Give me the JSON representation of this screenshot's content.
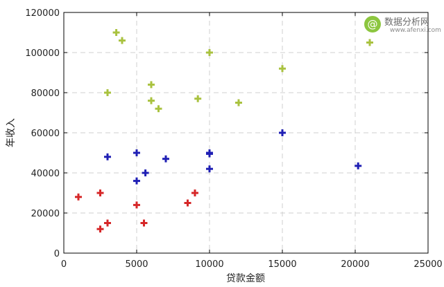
{
  "chart_data": {
    "type": "scatter",
    "title": "",
    "xlabel": "贷款金额",
    "ylabel": "年收入",
    "xlim": [
      0,
      25000
    ],
    "ylim": [
      0,
      120000
    ],
    "xticks": [
      0,
      5000,
      10000,
      15000,
      20000,
      25000
    ],
    "yticks": [
      0,
      20000,
      40000,
      60000,
      80000,
      100000,
      120000
    ],
    "grid": true,
    "marker": "plus",
    "series": [
      {
        "color": "#d62728",
        "points": [
          {
            "x": 1000,
            "y": 28000
          },
          {
            "x": 2500,
            "y": 30000
          },
          {
            "x": 2500,
            "y": 12000
          },
          {
            "x": 3000,
            "y": 15000
          },
          {
            "x": 5000,
            "y": 24000
          },
          {
            "x": 5500,
            "y": 15000
          },
          {
            "x": 8500,
            "y": 25000
          },
          {
            "x": 9000,
            "y": 30000
          }
        ]
      },
      {
        "color": "#1f1fb4",
        "points": [
          {
            "x": 3000,
            "y": 48000
          },
          {
            "x": 5000,
            "y": 50000
          },
          {
            "x": 5000,
            "y": 36000
          },
          {
            "x": 5600,
            "y": 40000
          },
          {
            "x": 7000,
            "y": 47000
          },
          {
            "x": 10000,
            "y": 50000
          },
          {
            "x": 10000,
            "y": 49500
          },
          {
            "x": 10000,
            "y": 42000
          },
          {
            "x": 15000,
            "y": 60000
          },
          {
            "x": 20200,
            "y": 43500
          }
        ]
      },
      {
        "color": "#a9c23f",
        "points": [
          {
            "x": 3600,
            "y": 110000
          },
          {
            "x": 4000,
            "y": 106000
          },
          {
            "x": 3000,
            "y": 80000
          },
          {
            "x": 6000,
            "y": 84000
          },
          {
            "x": 6000,
            "y": 76000
          },
          {
            "x": 6500,
            "y": 72000
          },
          {
            "x": 9200,
            "y": 77000
          },
          {
            "x": 10000,
            "y": 100000
          },
          {
            "x": 12000,
            "y": 75000
          },
          {
            "x": 15000,
            "y": 92000
          },
          {
            "x": 21000,
            "y": 105000
          }
        ]
      }
    ]
  },
  "watermark": {
    "title": "数据分析网",
    "url": "www.afenxi.com"
  }
}
